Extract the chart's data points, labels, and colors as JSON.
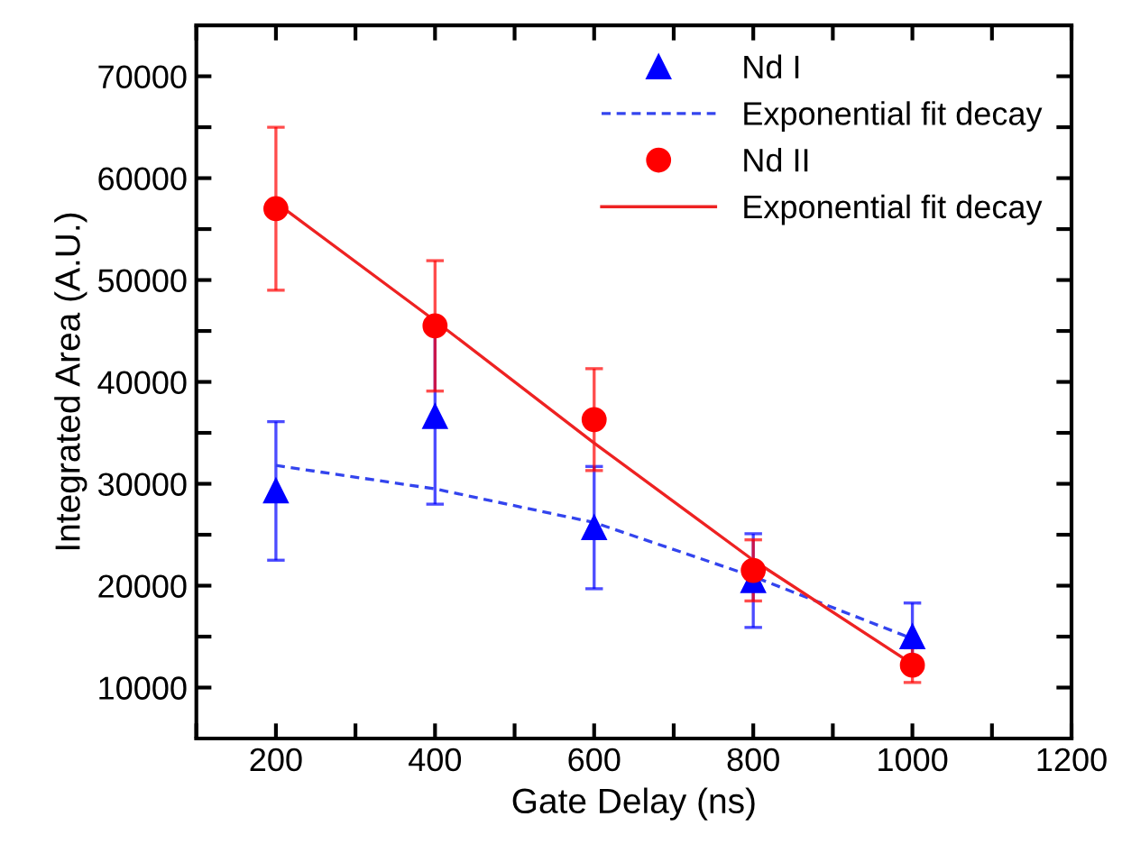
{
  "chart_data": {
    "type": "scatter",
    "xlabel": "Gate Delay (ns)",
    "ylabel": "Integrated Area (A.U.)",
    "xlim": [
      100,
      1200
    ],
    "xticks": [
      {
        "value": 100,
        "label": null
      },
      200,
      {
        "value": 300,
        "label": null
      },
      400,
      {
        "value": 500,
        "label": null
      },
      600,
      {
        "value": 700,
        "label": null
      },
      800,
      {
        "value": 900,
        "label": null
      },
      1000,
      {
        "value": 1100,
        "label": null
      },
      1200
    ],
    "ylim": [
      5000,
      75000
    ],
    "yticks": [
      10000,
      {
        "value": 15000,
        "label": null
      },
      20000,
      {
        "value": 25000,
        "label": null
      },
      30000,
      {
        "value": 35000,
        "label": null
      },
      40000,
      {
        "value": 45000,
        "label": null
      },
      50000,
      {
        "value": 55000,
        "label": null
      },
      60000,
      {
        "value": 65000,
        "label": null
      },
      70000
    ],
    "grid": false,
    "legend": "top right",
    "series": [
      {
        "name": "Nd I",
        "marker": "triangle",
        "color": "#0000ff",
        "x": [
          200,
          400,
          600,
          800,
          1000
        ],
        "values": [
          29300,
          36600,
          25700,
          20500,
          15000
        ],
        "errors": [
          6800,
          8600,
          6000,
          4600,
          3300
        ]
      },
      {
        "name": "Exponential fit decay",
        "type": "line",
        "line_style": "dashed",
        "color": "#3344ee",
        "x": [
          200,
          400,
          600,
          800,
          1000
        ],
        "values": [
          31800,
          29500,
          26200,
          20900,
          14800
        ]
      },
      {
        "name": "Nd II",
        "marker": "circle",
        "color": "#ff0000",
        "x": [
          200,
          400,
          600,
          800,
          1000
        ],
        "values": [
          57000,
          45500,
          36300,
          21500,
          12200
        ],
        "errors": [
          8000,
          6400,
          5000,
          3000,
          1700
        ]
      },
      {
        "name": "Exponential fit decay",
        "type": "line",
        "line_style": "solid",
        "color": "#ee2222",
        "x": [
          200,
          400,
          600,
          800,
          1000
        ],
        "values": [
          57600,
          46000,
          34000,
          22500,
          12300
        ]
      }
    ]
  }
}
